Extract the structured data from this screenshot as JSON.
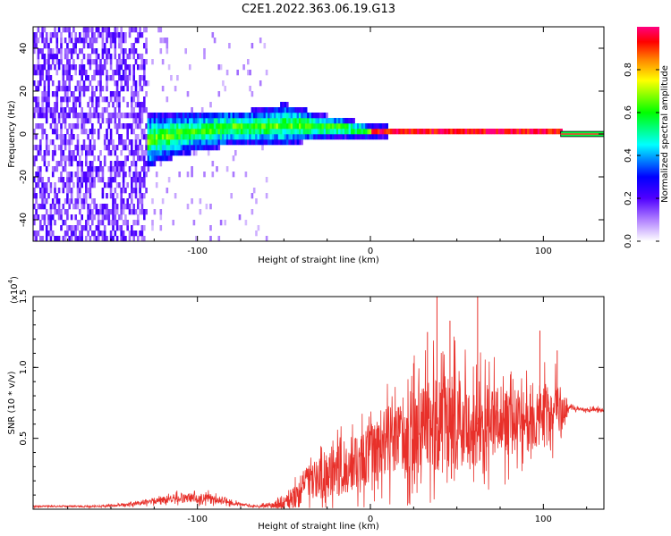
{
  "figure": {
    "title": "C2E1.2022.363.06.19.G13"
  },
  "chart_data": [
    {
      "type": "heatmap",
      "xlabel": "Height of straight line (km)",
      "ylabel": "Frequency (Hz)",
      "xlim": [
        -195,
        135
      ],
      "ylim": [
        -50,
        50
      ],
      "xticks": [
        -100,
        0,
        100
      ],
      "yticks": [
        -40,
        -20,
        0,
        20,
        40
      ],
      "ridge": {
        "x": [
          -140,
          -125,
          -110,
          -100,
          -90,
          -80,
          -70,
          -60,
          -50,
          -40,
          -30,
          -20,
          -10,
          0,
          20,
          40,
          60,
          80,
          100,
          108
        ],
        "freq": [
          -8,
          -3,
          -1,
          0,
          1,
          2,
          2,
          2,
          3,
          3,
          2,
          2,
          1,
          0,
          0,
          0,
          0,
          0,
          0,
          0
        ],
        "width": [
          18,
          12,
          10,
          9,
          9,
          8,
          8,
          9,
          10,
          8,
          6,
          5,
          4,
          3,
          2,
          2,
          2,
          2,
          2,
          2
        ]
      },
      "noise_region": {
        "x": [
          -195,
          -130
        ]
      },
      "colorbar": {
        "label": "Normalized spectral amplitude",
        "range": [
          0,
          1
        ],
        "ticks": [
          "0.0",
          "0.2",
          "0.4",
          "0.6",
          "0.8"
        ],
        "colors": [
          "#ffffff",
          "#8000ff",
          "#0000ff",
          "#00ffff",
          "#00ff00",
          "#ffff00",
          "#ff8000",
          "#ff0000",
          "#ff0080"
        ]
      }
    },
    {
      "type": "line",
      "xlabel": "Height of straight line (km)",
      "ylabel": "SNR (10 * v/v)",
      "yscale_label": "(x10",
      "yscale_exp": "4",
      "yscale_close": ")",
      "xlim": [
        -195,
        135
      ],
      "ylim": [
        0,
        1.5
      ],
      "xticks": [
        -100,
        0,
        100
      ],
      "yticks": [
        "0.5",
        "1.0",
        "1.5"
      ],
      "series": [
        {
          "color": "#e8302a",
          "envelope": {
            "x": [
              -195,
              -160,
              -140,
              -125,
              -110,
              -95,
              -85,
              -75,
              -65,
              -55,
              -45,
              -40,
              -35,
              -25,
              -15,
              -5,
              5,
              15,
              25,
              35,
              45,
              55,
              65,
              75,
              85,
              95,
              105,
              110,
              115,
              125,
              135
            ],
            "base": [
              0.02,
              0.02,
              0.03,
              0.06,
              0.08,
              0.08,
              0.06,
              0.03,
              0.02,
              0.03,
              0.08,
              0.15,
              0.2,
              0.25,
              0.3,
              0.35,
              0.45,
              0.5,
              0.55,
              0.6,
              0.6,
              0.6,
              0.6,
              0.6,
              0.62,
              0.65,
              0.66,
              0.68,
              0.72,
              0.7,
              0.7
            ],
            "amp": [
              0.01,
              0.01,
              0.02,
              0.04,
              0.06,
              0.06,
              0.04,
              0.02,
              0.01,
              0.05,
              0.15,
              0.2,
              0.25,
              0.3,
              0.35,
              0.35,
              0.45,
              0.45,
              0.55,
              0.6,
              0.65,
              0.6,
              0.55,
              0.45,
              0.4,
              0.45,
              0.4,
              0.35,
              0.03,
              0.03,
              0.03
            ]
          },
          "peaks": [
            [
              38.5,
              1.5
            ],
            [
              62,
              1.5
            ],
            [
              46,
              1.33
            ],
            [
              33,
              1.25
            ],
            [
              98,
              1.26
            ],
            [
              25,
              1.03
            ],
            [
              108,
              1.12
            ]
          ]
        }
      ]
    }
  ]
}
